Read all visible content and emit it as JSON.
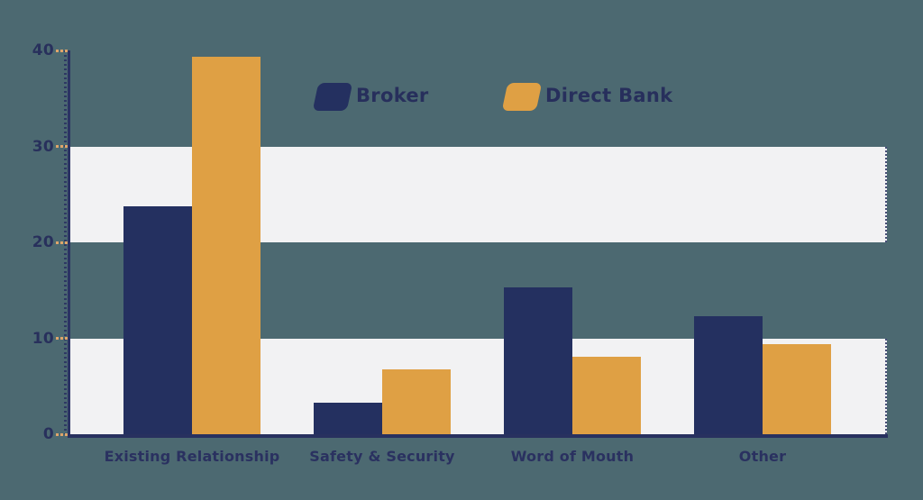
{
  "colors": {
    "background": "#4c6971",
    "band": "#f2f2f3",
    "axis": "#2b3363",
    "tick_dash": "#dfa56a",
    "label_text": "#28305c",
    "broker": "#243060",
    "direct_bank": "#dfa044"
  },
  "chart_data": {
    "type": "bar",
    "title": "",
    "categories": [
      "Existing Relationship",
      "Safety & Security",
      "Word of Mouth",
      "Other"
    ],
    "series": [
      {
        "name": "Broker",
        "color": "#243060",
        "values": [
          23.8,
          3.3,
          15.3,
          12.3
        ]
      },
      {
        "name": "Direct Bank",
        "color": "#dfa044",
        "values": [
          39.3,
          6.8,
          8.1,
          9.4
        ]
      }
    ],
    "xlabel": "",
    "ylabel": "",
    "ylim": [
      0,
      40
    ],
    "yticks": [
      0,
      10,
      20,
      30,
      40
    ],
    "band_ranges": [
      [
        0,
        10
      ],
      [
        20,
        30
      ]
    ],
    "legend_position": "top",
    "grid": "horizontal-bands"
  }
}
